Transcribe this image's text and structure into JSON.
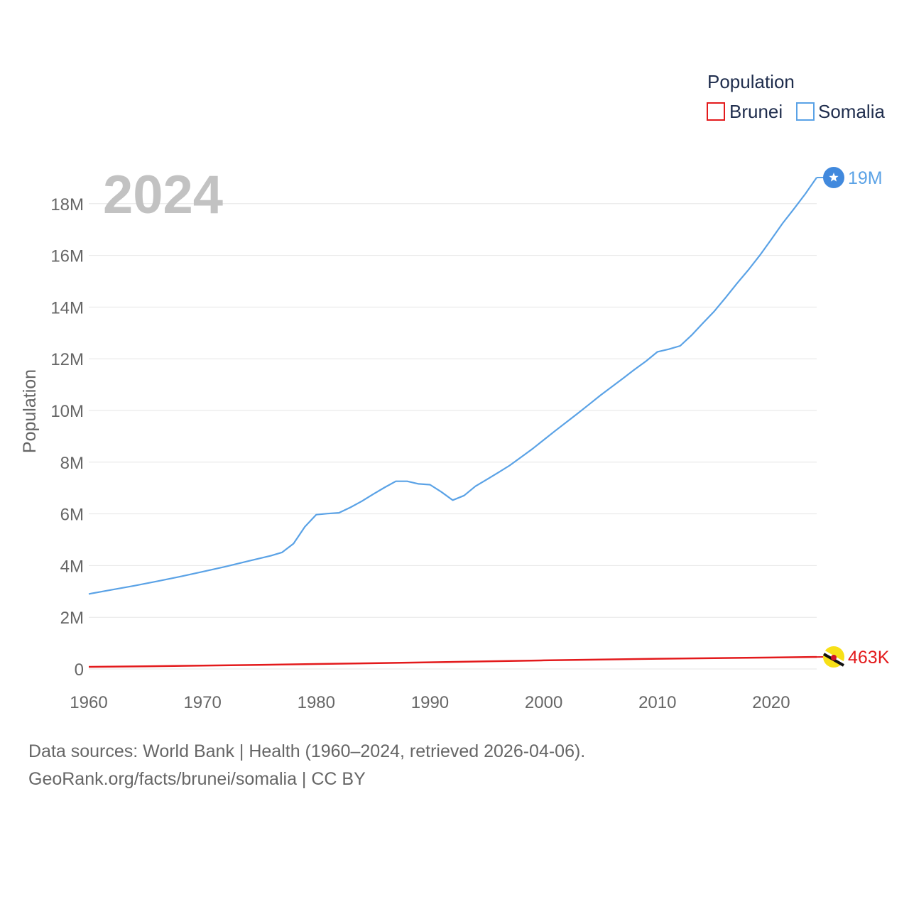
{
  "chart_data": {
    "type": "line",
    "year_label": "2024",
    "ylabel": "Population",
    "xlabel": "",
    "legend_title": "Population",
    "ylim": [
      0,
      19500000
    ],
    "xlim": [
      1960,
      2024
    ],
    "y_ticks": [
      0,
      2000000,
      4000000,
      6000000,
      8000000,
      10000000,
      12000000,
      14000000,
      16000000,
      18000000
    ],
    "y_tick_labels": [
      "0",
      "2M",
      "4M",
      "6M",
      "8M",
      "10M",
      "12M",
      "14M",
      "16M",
      "18M"
    ],
    "x_ticks": [
      1960,
      1970,
      1980,
      1990,
      2000,
      2010,
      2020
    ],
    "x_tick_labels": [
      "1960",
      "1970",
      "1980",
      "1990",
      "2000",
      "2010",
      "2020"
    ],
    "grid": true,
    "series": [
      {
        "name": "Brunei",
        "color": "#e31a1c",
        "end_label": "463K",
        "marker_icon": "brunei-flag-icon",
        "x": [
          1960,
          1965,
          1970,
          1975,
          1980,
          1985,
          1990,
          1995,
          2000,
          2005,
          2010,
          2015,
          2020,
          2024
        ],
        "y": [
          82000,
          104000,
          130000,
          160000,
          193000,
          223000,
          259000,
          295000,
          333000,
          365000,
          395000,
          417000,
          441000,
          463000
        ]
      },
      {
        "name": "Somalia",
        "color": "#5aa2e6",
        "end_label": "19M",
        "marker_icon": "somalia-flag-icon",
        "x": [
          1960,
          1962,
          1964,
          1966,
          1968,
          1970,
          1972,
          1974,
          1976,
          1977,
          1978,
          1979,
          1980,
          1981,
          1982,
          1983,
          1984,
          1985,
          1986,
          1987,
          1988,
          1989,
          1990,
          1991,
          1992,
          1993,
          1994,
          1995,
          1996,
          1997,
          1998,
          1999,
          2000,
          2001,
          2002,
          2003,
          2004,
          2005,
          2006,
          2007,
          2008,
          2009,
          2010,
          2011,
          2012,
          2013,
          2014,
          2015,
          2016,
          2017,
          2018,
          2019,
          2020,
          2021,
          2022,
          2023,
          2024
        ],
        "y": [
          2900000,
          3060000,
          3220000,
          3390000,
          3570000,
          3760000,
          3960000,
          4170000,
          4380000,
          4510000,
          4850000,
          5500000,
          5970000,
          6010000,
          6040000,
          6250000,
          6490000,
          6760000,
          7020000,
          7260000,
          7260000,
          7160000,
          7130000,
          6850000,
          6530000,
          6710000,
          7070000,
          7330000,
          7600000,
          7870000,
          8190000,
          8510000,
          8860000,
          9210000,
          9550000,
          9890000,
          10240000,
          10590000,
          10920000,
          11250000,
          11590000,
          11910000,
          12270000,
          12370000,
          12500000,
          12910000,
          13380000,
          13840000,
          14370000,
          14920000,
          15440000,
          16000000,
          16610000,
          17240000,
          17800000,
          18380000,
          19010000
        ]
      }
    ]
  },
  "footer": {
    "line1": "Data sources: World Bank | Health (1960–2024, retrieved 2026-04-06).",
    "line2": "GeoRank.org/facts/brunei/somalia | CC BY"
  }
}
